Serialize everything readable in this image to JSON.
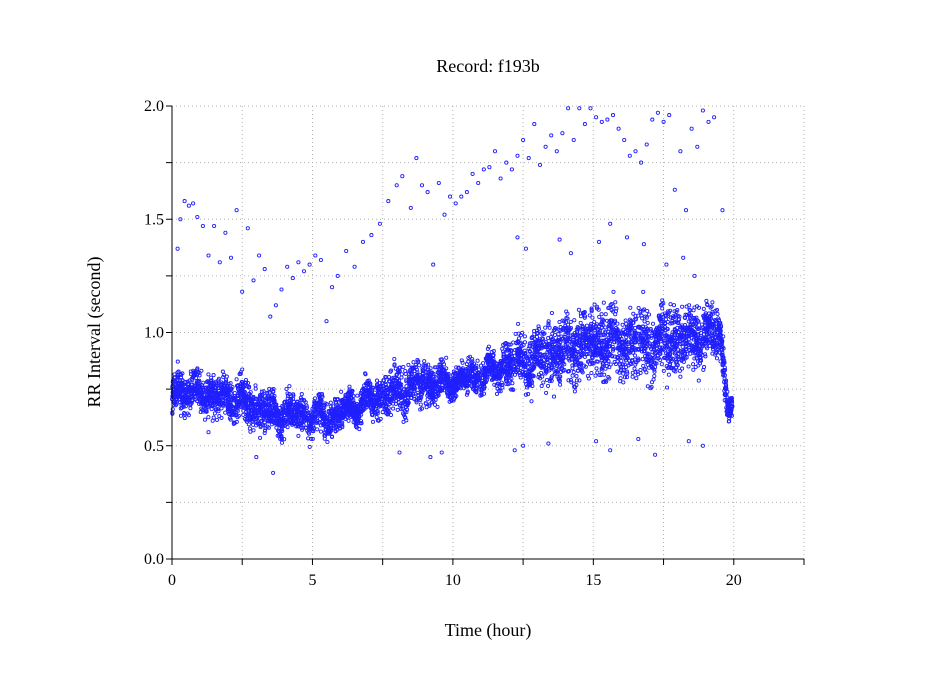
{
  "chart_data": {
    "type": "scatter",
    "title": "Record:  f193b",
    "xlabel": "Time (hour)",
    "ylabel": "RR Interval (second)",
    "xlim": [
      0,
      22.5
    ],
    "ylim": [
      0,
      2.0
    ],
    "x_ticks": [
      0,
      5,
      10,
      15,
      20
    ],
    "x_tick_labels": [
      "0",
      "5",
      "10",
      "15",
      "20"
    ],
    "x_minor_ticks": [
      2.5,
      7.5,
      12.5,
      17.5,
      22.5
    ],
    "y_ticks": [
      0.0,
      0.5,
      1.0,
      1.5,
      2.0
    ],
    "y_tick_labels": [
      "0.0",
      "0.5",
      "1.0",
      "1.5",
      "2.0"
    ],
    "y_minor_ticks": [
      0.25,
      0.75,
      1.25,
      1.75
    ],
    "grid": true,
    "marker": "circle",
    "series_color": "#1f1fff",
    "trend": [
      {
        "x": 0.0,
        "y": 0.74,
        "spread": 0.07
      },
      {
        "x": 0.8,
        "y": 0.74,
        "spread": 0.07
      },
      {
        "x": 1.5,
        "y": 0.72,
        "spread": 0.07
      },
      {
        "x": 2.5,
        "y": 0.7,
        "spread": 0.07
      },
      {
        "x": 3.5,
        "y": 0.64,
        "spread": 0.07
      },
      {
        "x": 4.5,
        "y": 0.64,
        "spread": 0.06
      },
      {
        "x": 5.5,
        "y": 0.62,
        "spread": 0.06
      },
      {
        "x": 6.5,
        "y": 0.67,
        "spread": 0.06
      },
      {
        "x": 7.5,
        "y": 0.73,
        "spread": 0.07
      },
      {
        "x": 8.5,
        "y": 0.76,
        "spread": 0.09
      },
      {
        "x": 9.5,
        "y": 0.78,
        "spread": 0.06
      },
      {
        "x": 10.5,
        "y": 0.8,
        "spread": 0.05
      },
      {
        "x": 11.5,
        "y": 0.83,
        "spread": 0.06
      },
      {
        "x": 12.5,
        "y": 0.88,
        "spread": 0.09
      },
      {
        "x": 13.5,
        "y": 0.9,
        "spread": 0.11
      },
      {
        "x": 14.5,
        "y": 0.95,
        "spread": 0.12
      },
      {
        "x": 15.5,
        "y": 0.96,
        "spread": 0.12
      },
      {
        "x": 16.5,
        "y": 0.94,
        "spread": 0.12
      },
      {
        "x": 17.5,
        "y": 0.96,
        "spread": 0.12
      },
      {
        "x": 18.5,
        "y": 0.98,
        "spread": 0.11
      },
      {
        "x": 19.5,
        "y": 1.0,
        "spread": 0.09
      },
      {
        "x": 19.8,
        "y": 0.68,
        "spread": 0.05
      },
      {
        "x": 19.95,
        "y": 0.66,
        "spread": 0.04
      }
    ],
    "outliers": [
      {
        "x": 0.2,
        "y": 1.37
      },
      {
        "x": 0.3,
        "y": 1.5
      },
      {
        "x": 0.45,
        "y": 1.58
      },
      {
        "x": 0.6,
        "y": 1.56
      },
      {
        "x": 0.75,
        "y": 1.57
      },
      {
        "x": 0.9,
        "y": 1.51
      },
      {
        "x": 1.1,
        "y": 1.47
      },
      {
        "x": 1.3,
        "y": 1.34
      },
      {
        "x": 1.5,
        "y": 1.47
      },
      {
        "x": 1.7,
        "y": 1.31
      },
      {
        "x": 1.9,
        "y": 1.44
      },
      {
        "x": 2.1,
        "y": 1.33
      },
      {
        "x": 2.3,
        "y": 1.54
      },
      {
        "x": 2.5,
        "y": 1.18
      },
      {
        "x": 2.7,
        "y": 1.46
      },
      {
        "x": 2.9,
        "y": 1.23
      },
      {
        "x": 3.1,
        "y": 1.34
      },
      {
        "x": 3.3,
        "y": 1.28
      },
      {
        "x": 3.5,
        "y": 1.07
      },
      {
        "x": 3.7,
        "y": 1.12
      },
      {
        "x": 3.9,
        "y": 1.19
      },
      {
        "x": 4.1,
        "y": 1.29
      },
      {
        "x": 4.3,
        "y": 1.24
      },
      {
        "x": 4.5,
        "y": 1.31
      },
      {
        "x": 4.7,
        "y": 1.27
      },
      {
        "x": 4.9,
        "y": 1.3
      },
      {
        "x": 5.1,
        "y": 1.34
      },
      {
        "x": 5.3,
        "y": 1.32
      },
      {
        "x": 5.5,
        "y": 1.05
      },
      {
        "x": 5.7,
        "y": 1.2
      },
      {
        "x": 5.9,
        "y": 1.25
      },
      {
        "x": 6.2,
        "y": 1.36
      },
      {
        "x": 6.5,
        "y": 1.29
      },
      {
        "x": 6.8,
        "y": 1.4
      },
      {
        "x": 7.1,
        "y": 1.43
      },
      {
        "x": 7.4,
        "y": 1.48
      },
      {
        "x": 7.7,
        "y": 1.58
      },
      {
        "x": 8.0,
        "y": 1.65
      },
      {
        "x": 8.2,
        "y": 1.69
      },
      {
        "x": 8.5,
        "y": 1.55
      },
      {
        "x": 8.7,
        "y": 1.77
      },
      {
        "x": 8.9,
        "y": 1.65
      },
      {
        "x": 9.1,
        "y": 1.62
      },
      {
        "x": 9.3,
        "y": 1.3
      },
      {
        "x": 9.5,
        "y": 1.66
      },
      {
        "x": 9.7,
        "y": 1.52
      },
      {
        "x": 9.9,
        "y": 1.6
      },
      {
        "x": 10.1,
        "y": 1.57
      },
      {
        "x": 10.3,
        "y": 1.6
      },
      {
        "x": 10.5,
        "y": 1.62
      },
      {
        "x": 10.7,
        "y": 1.7
      },
      {
        "x": 10.9,
        "y": 1.66
      },
      {
        "x": 11.1,
        "y": 1.72
      },
      {
        "x": 11.3,
        "y": 1.73
      },
      {
        "x": 11.5,
        "y": 1.8
      },
      {
        "x": 11.7,
        "y": 1.68
      },
      {
        "x": 11.9,
        "y": 1.75
      },
      {
        "x": 12.1,
        "y": 1.72
      },
      {
        "x": 12.3,
        "y": 1.78
      },
      {
        "x": 12.5,
        "y": 1.85
      },
      {
        "x": 12.7,
        "y": 1.77
      },
      {
        "x": 12.9,
        "y": 1.92
      },
      {
        "x": 13.1,
        "y": 1.74
      },
      {
        "x": 13.3,
        "y": 1.82
      },
      {
        "x": 13.5,
        "y": 1.87
      },
      {
        "x": 13.7,
        "y": 1.8
      },
      {
        "x": 13.9,
        "y": 1.88
      },
      {
        "x": 14.1,
        "y": 1.99
      },
      {
        "x": 14.3,
        "y": 1.85
      },
      {
        "x": 14.5,
        "y": 1.99
      },
      {
        "x": 14.7,
        "y": 1.92
      },
      {
        "x": 14.9,
        "y": 1.99
      },
      {
        "x": 15.1,
        "y": 1.95
      },
      {
        "x": 15.3,
        "y": 1.93
      },
      {
        "x": 15.5,
        "y": 1.94
      },
      {
        "x": 15.7,
        "y": 1.96
      },
      {
        "x": 15.9,
        "y": 1.9
      },
      {
        "x": 16.1,
        "y": 1.85
      },
      {
        "x": 16.3,
        "y": 1.78
      },
      {
        "x": 16.5,
        "y": 1.8
      },
      {
        "x": 16.7,
        "y": 1.75
      },
      {
        "x": 16.9,
        "y": 1.83
      },
      {
        "x": 17.1,
        "y": 1.94
      },
      {
        "x": 17.3,
        "y": 1.97
      },
      {
        "x": 17.5,
        "y": 1.93
      },
      {
        "x": 17.7,
        "y": 1.96
      },
      {
        "x": 17.9,
        "y": 1.63
      },
      {
        "x": 18.1,
        "y": 1.8
      },
      {
        "x": 18.3,
        "y": 1.54
      },
      {
        "x": 18.5,
        "y": 1.9
      },
      {
        "x": 18.7,
        "y": 1.82
      },
      {
        "x": 18.9,
        "y": 1.98
      },
      {
        "x": 19.1,
        "y": 1.93
      },
      {
        "x": 19.3,
        "y": 1.95
      },
      {
        "x": 19.6,
        "y": 1.54
      },
      {
        "x": 12.3,
        "y": 1.42
      },
      {
        "x": 12.6,
        "y": 1.37
      },
      {
        "x": 13.8,
        "y": 1.41
      },
      {
        "x": 14.2,
        "y": 1.35
      },
      {
        "x": 15.2,
        "y": 1.4
      },
      {
        "x": 15.6,
        "y": 1.48
      },
      {
        "x": 16.2,
        "y": 1.42
      },
      {
        "x": 16.8,
        "y": 1.39
      },
      {
        "x": 17.6,
        "y": 1.3
      },
      {
        "x": 18.2,
        "y": 1.33
      },
      {
        "x": 18.6,
        "y": 1.25
      },
      {
        "x": 12.2,
        "y": 0.48
      },
      {
        "x": 12.5,
        "y": 0.5
      },
      {
        "x": 13.4,
        "y": 0.51
      },
      {
        "x": 15.1,
        "y": 0.52
      },
      {
        "x": 15.6,
        "y": 0.48
      },
      {
        "x": 16.6,
        "y": 0.53
      },
      {
        "x": 17.2,
        "y": 0.46
      },
      {
        "x": 18.4,
        "y": 0.52
      },
      {
        "x": 18.9,
        "y": 0.5
      },
      {
        "x": 8.1,
        "y": 0.47
      },
      {
        "x": 9.2,
        "y": 0.45
      },
      {
        "x": 9.6,
        "y": 0.47
      },
      {
        "x": 3.0,
        "y": 0.45
      },
      {
        "x": 3.6,
        "y": 0.38
      },
      {
        "x": 1.3,
        "y": 0.56
      }
    ]
  }
}
